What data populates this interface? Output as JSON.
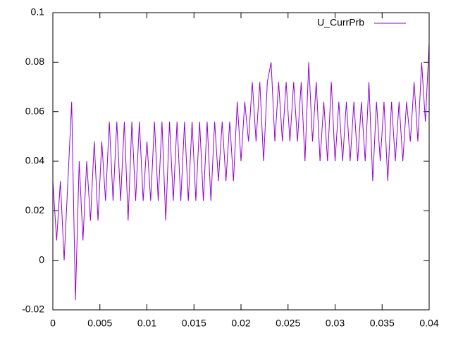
{
  "chart_data": {
    "type": "line",
    "x": [
      0,
      0.0004,
      0.0008,
      0.0012,
      0.0016,
      0.002,
      0.0024,
      0.0028,
      0.0032,
      0.0036,
      0.004,
      0.0044,
      0.0048,
      0.0052,
      0.0056,
      0.006,
      0.0064,
      0.0068,
      0.0072,
      0.0076,
      0.008,
      0.0084,
      0.0088,
      0.0092,
      0.0096,
      0.01,
      0.0104,
      0.0108,
      0.0112,
      0.0116,
      0.012,
      0.0124,
      0.0128,
      0.0132,
      0.0136,
      0.014,
      0.0144,
      0.0148,
      0.0152,
      0.0156,
      0.016,
      0.0164,
      0.0168,
      0.0172,
      0.0176,
      0.018,
      0.0184,
      0.0188,
      0.0192,
      0.0196,
      0.02,
      0.0204,
      0.0208,
      0.0212,
      0.0216,
      0.022,
      0.0224,
      0.0228,
      0.0232,
      0.0236,
      0.024,
      0.0244,
      0.0248,
      0.0252,
      0.0256,
      0.026,
      0.0264,
      0.0268,
      0.0272,
      0.0276,
      0.028,
      0.0284,
      0.0288,
      0.0292,
      0.0296,
      0.03,
      0.0304,
      0.0308,
      0.0312,
      0.0316,
      0.032,
      0.0324,
      0.0328,
      0.0332,
      0.0336,
      0.034,
      0.0344,
      0.0348,
      0.0352,
      0.0356,
      0.036,
      0.0364,
      0.0368,
      0.0372,
      0.0376,
      0.038,
      0.0384,
      0.0388,
      0.0392,
      0.0396,
      0.04
    ],
    "series": [
      {
        "name": "U_CurrPrb",
        "color": "#9400d3",
        "values": [
          0.032,
          0.008,
          0.032,
          0,
          0.032,
          0.064,
          -0.016,
          0.04,
          0.008,
          0.04,
          0.016,
          0.048,
          0.016,
          0.048,
          0.024,
          0.056,
          0.024,
          0.056,
          0.024,
          0.056,
          0.016,
          0.056,
          0.024,
          0.056,
          0.024,
          0.048,
          0.024,
          0.056,
          0.024,
          0.056,
          0.016,
          0.056,
          0.024,
          0.056,
          0.024,
          0.056,
          0.024,
          0.056,
          0.024,
          0.056,
          0.024,
          0.056,
          0.024,
          0.056,
          0.032,
          0.056,
          0.032,
          0.056,
          0.032,
          0.064,
          0.04,
          0.064,
          0.048,
          0.072,
          0.048,
          0.072,
          0.04,
          0.072,
          0.08,
          0.048,
          0.072,
          0.048,
          0.072,
          0.048,
          0.072,
          0.048,
          0.072,
          0.04,
          0.08,
          0.048,
          0.072,
          0.04,
          0.064,
          0.04,
          0.072,
          0.04,
          0.064,
          0.04,
          0.064,
          0.04,
          0.064,
          0.04,
          0.064,
          0.04,
          0.072,
          0.032,
          0.064,
          0.04,
          0.064,
          0.032,
          0.064,
          0.04,
          0.064,
          0.04,
          0.064,
          0.048,
          0.072,
          0.048,
          0.08,
          0.056,
          0.088
        ]
      }
    ],
    "xlim": [
      0,
      0.04
    ],
    "xticks": [
      0,
      0.005,
      0.01,
      0.015,
      0.02,
      0.025,
      0.03,
      0.035,
      0.04
    ],
    "ylim": [
      -0.02,
      0.1
    ],
    "yticks": [
      -0.02,
      0,
      0.02,
      0.04,
      0.06,
      0.08,
      0.1
    ],
    "legend": "top right"
  }
}
